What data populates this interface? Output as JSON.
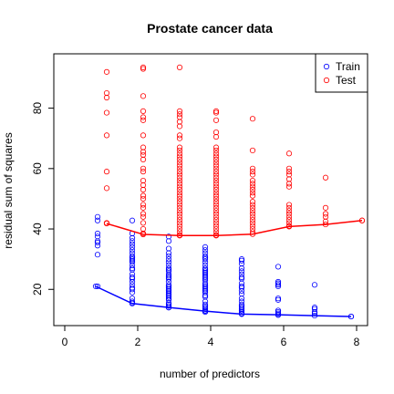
{
  "chart_data": {
    "type": "scatter",
    "title": "Prostate cancer data",
    "xlabel": "number of predictors",
    "ylabel": "residual sum of squares",
    "xlim": [
      -0.3,
      8.3
    ],
    "ylim": [
      8,
      98
    ],
    "xticks": [
      0,
      2,
      4,
      6,
      8
    ],
    "yticks": [
      20,
      40,
      60,
      80
    ],
    "grid": false,
    "legend_position": "top-right",
    "series": [
      {
        "name": "Train",
        "color": "#0000FF",
        "points": [
          [
            0.9,
            44.0
          ],
          [
            0.9,
            42.8
          ],
          [
            0.9,
            38.5
          ],
          [
            0.9,
            37.5
          ],
          [
            0.9,
            36.0
          ],
          [
            0.9,
            35.5
          ],
          [
            0.9,
            34.5
          ],
          [
            0.9,
            31.5
          ],
          [
            0.9,
            21.0
          ],
          [
            1.85,
            42.8
          ],
          [
            1.85,
            38.5
          ],
          [
            1.85,
            37.0
          ],
          [
            1.85,
            36.0
          ],
          [
            1.85,
            35.0
          ],
          [
            1.85,
            34.0
          ],
          [
            1.85,
            33.0
          ],
          [
            1.85,
            32.0
          ],
          [
            1.85,
            31.0
          ],
          [
            1.85,
            30.5
          ],
          [
            1.85,
            30.0
          ],
          [
            1.85,
            29.5
          ],
          [
            1.85,
            29.0
          ],
          [
            1.85,
            28.0
          ],
          [
            1.85,
            27.0
          ],
          [
            1.85,
            26.5
          ],
          [
            1.85,
            25.0
          ],
          [
            1.85,
            24.0
          ],
          [
            1.85,
            23.5
          ],
          [
            1.85,
            22.5
          ],
          [
            1.85,
            21.5
          ],
          [
            1.85,
            20.5
          ],
          [
            1.85,
            20.0
          ],
          [
            1.85,
            19.0
          ],
          [
            1.85,
            17.0
          ],
          [
            1.85,
            16.0
          ],
          [
            1.85,
            15.5
          ],
          [
            2.85,
            37.5
          ],
          [
            2.85,
            36.0
          ],
          [
            2.85,
            33.5
          ],
          [
            2.85,
            32.0
          ],
          [
            2.85,
            31.0
          ],
          [
            2.85,
            30.0
          ],
          [
            2.85,
            29.0
          ],
          [
            2.85,
            28.0
          ],
          [
            2.85,
            27.0
          ],
          [
            2.85,
            26.5
          ],
          [
            2.85,
            26.0
          ],
          [
            2.85,
            25.0
          ],
          [
            2.85,
            24.5
          ],
          [
            2.85,
            24.0
          ],
          [
            2.85,
            23.5
          ],
          [
            2.85,
            22.5
          ],
          [
            2.85,
            21.5
          ],
          [
            2.85,
            21.0
          ],
          [
            2.85,
            20.5
          ],
          [
            2.85,
            20.0
          ],
          [
            2.85,
            19.5
          ],
          [
            2.85,
            19.0
          ],
          [
            2.85,
            18.5
          ],
          [
            2.85,
            18.0
          ],
          [
            2.85,
            17.5
          ],
          [
            2.85,
            17.0
          ],
          [
            2.85,
            16.5
          ],
          [
            2.85,
            15.5
          ],
          [
            2.85,
            15.0
          ],
          [
            2.85,
            14.5
          ],
          [
            2.85,
            14.0
          ],
          [
            3.85,
            34.0
          ],
          [
            3.85,
            33.0
          ],
          [
            3.85,
            32.0
          ],
          [
            3.85,
            31.0
          ],
          [
            3.85,
            30.5
          ],
          [
            3.85,
            30.0
          ],
          [
            3.85,
            29.0
          ],
          [
            3.85,
            28.0
          ],
          [
            3.85,
            27.0
          ],
          [
            3.85,
            26.5
          ],
          [
            3.85,
            26.0
          ],
          [
            3.85,
            25.5
          ],
          [
            3.85,
            25.0
          ],
          [
            3.85,
            24.5
          ],
          [
            3.85,
            24.0
          ],
          [
            3.85,
            23.5
          ],
          [
            3.85,
            23.0
          ],
          [
            3.85,
            22.0
          ],
          [
            3.85,
            21.5
          ],
          [
            3.85,
            21.0
          ],
          [
            3.85,
            20.5
          ],
          [
            3.85,
            20.0
          ],
          [
            3.85,
            19.5
          ],
          [
            3.85,
            19.0
          ],
          [
            3.85,
            18.0
          ],
          [
            3.85,
            17.5
          ],
          [
            3.85,
            16.0
          ],
          [
            3.85,
            15.0
          ],
          [
            3.85,
            14.5
          ],
          [
            3.85,
            14.0
          ],
          [
            3.85,
            13.5
          ],
          [
            3.85,
            13.0
          ],
          [
            3.85,
            12.5
          ],
          [
            4.85,
            30.0
          ],
          [
            4.85,
            29.5
          ],
          [
            4.85,
            28.5
          ],
          [
            4.85,
            27.0
          ],
          [
            4.85,
            26.0
          ],
          [
            4.85,
            25.0
          ],
          [
            4.85,
            24.0
          ],
          [
            4.85,
            23.5
          ],
          [
            4.85,
            22.0
          ],
          [
            4.85,
            21.0
          ],
          [
            4.85,
            20.5
          ],
          [
            4.85,
            19.5
          ],
          [
            4.85,
            18.5
          ],
          [
            4.85,
            17.0
          ],
          [
            4.85,
            16.0
          ],
          [
            4.85,
            15.0
          ],
          [
            4.85,
            14.5
          ],
          [
            4.85,
            14.0
          ],
          [
            4.85,
            13.5
          ],
          [
            4.85,
            13.0
          ],
          [
            4.85,
            12.5
          ],
          [
            4.85,
            12.0
          ],
          [
            5.85,
            27.5
          ],
          [
            5.85,
            22.5
          ],
          [
            5.85,
            22.0
          ],
          [
            5.85,
            21.5
          ],
          [
            5.85,
            21.0
          ],
          [
            5.85,
            17.0
          ],
          [
            5.85,
            16.5
          ],
          [
            5.85,
            13.0
          ],
          [
            5.85,
            12.5
          ],
          [
            5.85,
            12.0
          ],
          [
            5.85,
            11.5
          ],
          [
            6.85,
            21.5
          ],
          [
            6.85,
            14.0
          ],
          [
            6.85,
            13.5
          ],
          [
            6.85,
            12.5
          ],
          [
            6.85,
            12.0
          ],
          [
            7.85,
            11.0
          ]
        ],
        "line": [
          [
            0.85,
            21.0
          ],
          [
            1.85,
            15.3
          ],
          [
            2.85,
            14.0
          ],
          [
            3.85,
            12.8
          ],
          [
            4.85,
            11.8
          ],
          [
            5.85,
            11.6
          ],
          [
            6.85,
            11.3
          ],
          [
            7.85,
            11.0
          ]
        ]
      },
      {
        "name": "Test",
        "color": "#FF0000",
        "points": [
          [
            1.15,
            92.0
          ],
          [
            1.15,
            85.0
          ],
          [
            1.15,
            83.5
          ],
          [
            1.15,
            78.5
          ],
          [
            1.15,
            71.0
          ],
          [
            1.15,
            59.0
          ],
          [
            1.15,
            53.5
          ],
          [
            1.15,
            42.0
          ],
          [
            2.15,
            93.5
          ],
          [
            2.15,
            93.0
          ],
          [
            2.15,
            84.0
          ],
          [
            2.15,
            79.0
          ],
          [
            2.15,
            77.0
          ],
          [
            2.15,
            76.0
          ],
          [
            2.15,
            71.0
          ],
          [
            2.15,
            67.0
          ],
          [
            2.15,
            65.5
          ],
          [
            2.15,
            64.5
          ],
          [
            2.15,
            63.0
          ],
          [
            2.15,
            60.0
          ],
          [
            2.15,
            59.0
          ],
          [
            2.15,
            56.0
          ],
          [
            2.15,
            54.5
          ],
          [
            2.15,
            53.0
          ],
          [
            2.15,
            51.0
          ],
          [
            2.15,
            50.0
          ],
          [
            2.15,
            48.0
          ],
          [
            2.15,
            47.0
          ],
          [
            2.15,
            45.0
          ],
          [
            2.15,
            44.0
          ],
          [
            2.15,
            42.0
          ],
          [
            2.15,
            40.0
          ],
          [
            2.15,
            38.5
          ],
          [
            3.15,
            93.5
          ],
          [
            3.15,
            79.0
          ],
          [
            3.15,
            78.0
          ],
          [
            3.15,
            77.0
          ],
          [
            3.15,
            75.5
          ],
          [
            3.15,
            74.0
          ],
          [
            3.15,
            71.0
          ],
          [
            3.15,
            70.0
          ],
          [
            3.15,
            67.0
          ],
          [
            3.15,
            66.0
          ],
          [
            3.15,
            65.0
          ],
          [
            3.15,
            64.0
          ],
          [
            3.15,
            63.0
          ],
          [
            3.15,
            62.0
          ],
          [
            3.15,
            61.0
          ],
          [
            3.15,
            60.0
          ],
          [
            3.15,
            59.0
          ],
          [
            3.15,
            58.0
          ],
          [
            3.15,
            57.0
          ],
          [
            3.15,
            56.0
          ],
          [
            3.15,
            55.0
          ],
          [
            3.15,
            54.0
          ],
          [
            3.15,
            53.0
          ],
          [
            3.15,
            52.0
          ],
          [
            3.15,
            51.0
          ],
          [
            3.15,
            50.0
          ],
          [
            3.15,
            49.0
          ],
          [
            3.15,
            48.0
          ],
          [
            3.15,
            47.0
          ],
          [
            3.15,
            46.0
          ],
          [
            3.15,
            45.0
          ],
          [
            3.15,
            44.0
          ],
          [
            3.15,
            43.0
          ],
          [
            3.15,
            42.0
          ],
          [
            3.15,
            41.0
          ],
          [
            3.15,
            40.0
          ],
          [
            3.15,
            39.0
          ],
          [
            3.15,
            38.0
          ],
          [
            4.15,
            79.0
          ],
          [
            4.15,
            78.5
          ],
          [
            4.15,
            76.0
          ],
          [
            4.15,
            72.0
          ],
          [
            4.15,
            70.5
          ],
          [
            4.15,
            67.0
          ],
          [
            4.15,
            66.0
          ],
          [
            4.15,
            65.0
          ],
          [
            4.15,
            64.0
          ],
          [
            4.15,
            63.0
          ],
          [
            4.15,
            62.0
          ],
          [
            4.15,
            61.0
          ],
          [
            4.15,
            60.0
          ],
          [
            4.15,
            59.0
          ],
          [
            4.15,
            58.0
          ],
          [
            4.15,
            57.0
          ],
          [
            4.15,
            56.0
          ],
          [
            4.15,
            55.0
          ],
          [
            4.15,
            54.0
          ],
          [
            4.15,
            53.0
          ],
          [
            4.15,
            52.0
          ],
          [
            4.15,
            51.0
          ],
          [
            4.15,
            50.0
          ],
          [
            4.15,
            49.0
          ],
          [
            4.15,
            48.0
          ],
          [
            4.15,
            47.0
          ],
          [
            4.15,
            46.0
          ],
          [
            4.15,
            45.0
          ],
          [
            4.15,
            44.0
          ],
          [
            4.15,
            43.0
          ],
          [
            4.15,
            42.0
          ],
          [
            4.15,
            41.0
          ],
          [
            4.15,
            40.0
          ],
          [
            4.15,
            39.0
          ],
          [
            4.15,
            38.0
          ],
          [
            5.15,
            76.5
          ],
          [
            5.15,
            66.0
          ],
          [
            5.15,
            60.0
          ],
          [
            5.15,
            59.0
          ],
          [
            5.15,
            58.0
          ],
          [
            5.15,
            56.0
          ],
          [
            5.15,
            55.0
          ],
          [
            5.15,
            54.0
          ],
          [
            5.15,
            53.0
          ],
          [
            5.15,
            52.0
          ],
          [
            5.15,
            51.0
          ],
          [
            5.15,
            49.0
          ],
          [
            5.15,
            48.0
          ],
          [
            5.15,
            47.0
          ],
          [
            5.15,
            46.0
          ],
          [
            5.15,
            45.0
          ],
          [
            5.15,
            44.0
          ],
          [
            5.15,
            43.0
          ],
          [
            5.15,
            42.0
          ],
          [
            5.15,
            41.0
          ],
          [
            5.15,
            40.0
          ],
          [
            5.15,
            39.0
          ],
          [
            6.15,
            65.0
          ],
          [
            6.15,
            60.0
          ],
          [
            6.15,
            59.0
          ],
          [
            6.15,
            58.0
          ],
          [
            6.15,
            56.5
          ],
          [
            6.15,
            55.0
          ],
          [
            6.15,
            54.0
          ],
          [
            6.15,
            48.0
          ],
          [
            6.15,
            47.0
          ],
          [
            6.15,
            46.0
          ],
          [
            6.15,
            45.0
          ],
          [
            6.15,
            44.0
          ],
          [
            6.15,
            43.0
          ],
          [
            6.15,
            42.0
          ],
          [
            6.15,
            41.0
          ],
          [
            7.15,
            57.0
          ],
          [
            7.15,
            47.0
          ],
          [
            7.15,
            45.0
          ],
          [
            7.15,
            44.0
          ],
          [
            7.15,
            42.5
          ],
          [
            8.15,
            42.8
          ]
        ],
        "line": [
          [
            1.15,
            41.8
          ],
          [
            2.15,
            38.2
          ],
          [
            3.15,
            37.8
          ],
          [
            4.15,
            37.8
          ],
          [
            5.15,
            38.3
          ],
          [
            6.15,
            40.8
          ],
          [
            7.15,
            41.5
          ],
          [
            8.15,
            42.8
          ]
        ]
      }
    ]
  }
}
